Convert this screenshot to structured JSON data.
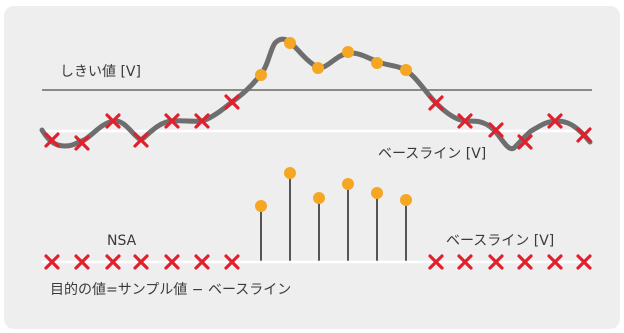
{
  "labels": {
    "threshold": "しきい値 [V]",
    "baseline_top": "ベースライン [V]",
    "nsa": "NSA",
    "baseline_bottom": "ベースライン [V]",
    "formula": "目的の値=サンプル値 − ベースライン"
  },
  "colors": {
    "background_panel": "#eeeeef",
    "threshold_line": "#8a8a8a",
    "signal_curve": "#6e6e6e",
    "baseline": "#ffffff",
    "accepted_marker": "#f5a623",
    "rejected_marker": "#e0212d",
    "stem": "#222222"
  },
  "icons": {
    "accepted_sample": "orange-dot-icon",
    "rejected_sample": "red-x-icon"
  }
}
